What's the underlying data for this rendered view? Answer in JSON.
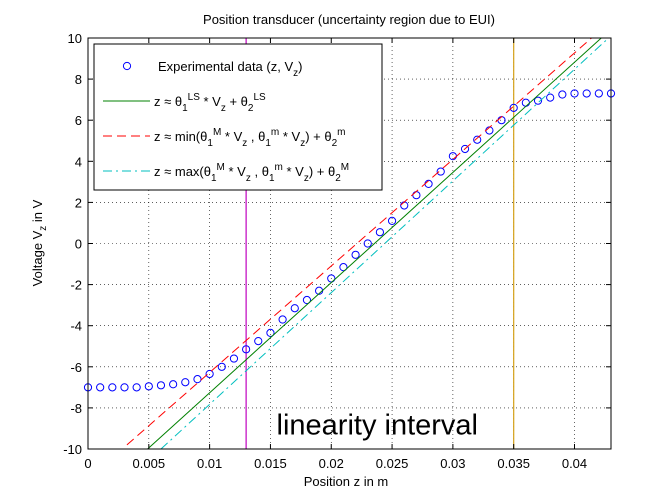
{
  "chart_data": {
    "type": "line",
    "title": "Position transducer (uncertainty region due to EUI)",
    "xlabel": "Position z in m",
    "ylabel_parts": [
      "Voltage V",
      "z",
      " in V"
    ],
    "xlim": [
      0,
      0.043
    ],
    "ylim": [
      -10,
      10
    ],
    "xticks": [
      0,
      0.005,
      0.01,
      0.015,
      0.02,
      0.025,
      0.03,
      0.035,
      0.04
    ],
    "xtick_labels": [
      "0",
      "0.005",
      "0.01",
      "0.015",
      "0.02",
      "0.025",
      "0.03",
      "0.035",
      "0.04"
    ],
    "yticks": [
      -10,
      -8,
      -6,
      -4,
      -2,
      0,
      2,
      4,
      6,
      8,
      10
    ],
    "ytick_labels": [
      "-10",
      "-8",
      "-6",
      "-4",
      "-2",
      "0",
      "2",
      "4",
      "6",
      "8",
      "10"
    ],
    "grid": true,
    "legend_position": "top-left",
    "series": [
      {
        "id": "experimental",
        "style": "marker",
        "color": "#0000ff",
        "x": [
          0,
          0.001,
          0.002,
          0.003,
          0.004,
          0.005,
          0.006,
          0.007,
          0.008,
          0.009,
          0.01,
          0.011,
          0.012,
          0.013,
          0.014,
          0.015,
          0.016,
          0.017,
          0.018,
          0.019,
          0.02,
          0.021,
          0.022,
          0.023,
          0.024,
          0.025,
          0.026,
          0.027,
          0.028,
          0.029,
          0.03,
          0.031,
          0.032,
          0.033,
          0.034,
          0.035,
          0.036,
          0.037,
          0.038,
          0.039,
          0.04,
          0.041,
          0.042,
          0.043
        ],
        "y": [
          -7.0,
          -7.0,
          -7.0,
          -7.0,
          -7.0,
          -6.95,
          -6.9,
          -6.85,
          -6.75,
          -6.6,
          -6.35,
          -6.0,
          -5.6,
          -5.15,
          -4.75,
          -4.35,
          -3.7,
          -3.15,
          -2.75,
          -2.3,
          -1.7,
          -1.15,
          -0.55,
          0.0,
          0.55,
          1.1,
          1.85,
          2.35,
          2.9,
          3.5,
          4.25,
          4.6,
          5.05,
          5.5,
          6.0,
          6.6,
          6.85,
          6.95,
          7.1,
          7.25,
          7.3,
          7.3,
          7.3,
          7.3
        ]
      },
      {
        "id": "least-squares",
        "style": "solid",
        "color": "#008000",
        "x": [
          0.0049,
          0.0422
        ],
        "y": [
          -10,
          10
        ]
      },
      {
        "id": "min-bound",
        "style": "dashed",
        "color": "#ff0000",
        "x": [
          0.0032,
          0.0414
        ],
        "y": [
          -9.8,
          10
        ]
      },
      {
        "id": "max-bound",
        "style": "dashdot",
        "color": "#00bfbf",
        "x": [
          0.006,
          0.0428
        ],
        "y": [
          -10,
          10
        ]
      }
    ],
    "vlines": [
      {
        "x": 0.013,
        "color": "#bf00bf"
      },
      {
        "x": 0.035,
        "color": "#d4a017"
      }
    ],
    "annotation": {
      "text": "linearity interval",
      "x": 0.0155,
      "y": -9.3
    },
    "legend": [
      {
        "series": "experimental",
        "parts": [
          [
            "Experimental data (z, V",
            "n"
          ],
          [
            "z",
            "sub"
          ],
          [
            ")",
            "n"
          ]
        ]
      },
      {
        "series": "least-squares",
        "parts": [
          [
            "z ≈ θ",
            "n"
          ],
          [
            "1",
            "sub"
          ],
          [
            "LS",
            "sup"
          ],
          [
            " * V",
            "n"
          ],
          [
            "z",
            "sub"
          ],
          [
            " + θ",
            "n"
          ],
          [
            "2",
            "sub"
          ],
          [
            "LS",
            "sup"
          ]
        ]
      },
      {
        "series": "min-bound",
        "parts": [
          [
            "z ≈ min(θ",
            "n"
          ],
          [
            "1",
            "sub"
          ],
          [
            "M",
            "sup"
          ],
          [
            " * V",
            "n"
          ],
          [
            "z",
            "sub"
          ],
          [
            " , θ",
            "n"
          ],
          [
            "1",
            "sub"
          ],
          [
            "m",
            "sup"
          ],
          [
            " * V",
            "n"
          ],
          [
            "z",
            "sub"
          ],
          [
            ") + θ",
            "n"
          ],
          [
            "2",
            "sub"
          ],
          [
            "m",
            "sup"
          ]
        ]
      },
      {
        "series": "max-bound",
        "parts": [
          [
            "z ≈ max(θ",
            "n"
          ],
          [
            "1",
            "sub"
          ],
          [
            "M",
            "sup"
          ],
          [
            " * V",
            "n"
          ],
          [
            "z",
            "sub"
          ],
          [
            " , θ",
            "n"
          ],
          [
            "1",
            "sub"
          ],
          [
            "m",
            "sup"
          ],
          [
            " * V",
            "n"
          ],
          [
            "z",
            "sub"
          ],
          [
            ") + θ",
            "n"
          ],
          [
            "2",
            "sub"
          ],
          [
            "M",
            "sup"
          ]
        ]
      }
    ]
  }
}
